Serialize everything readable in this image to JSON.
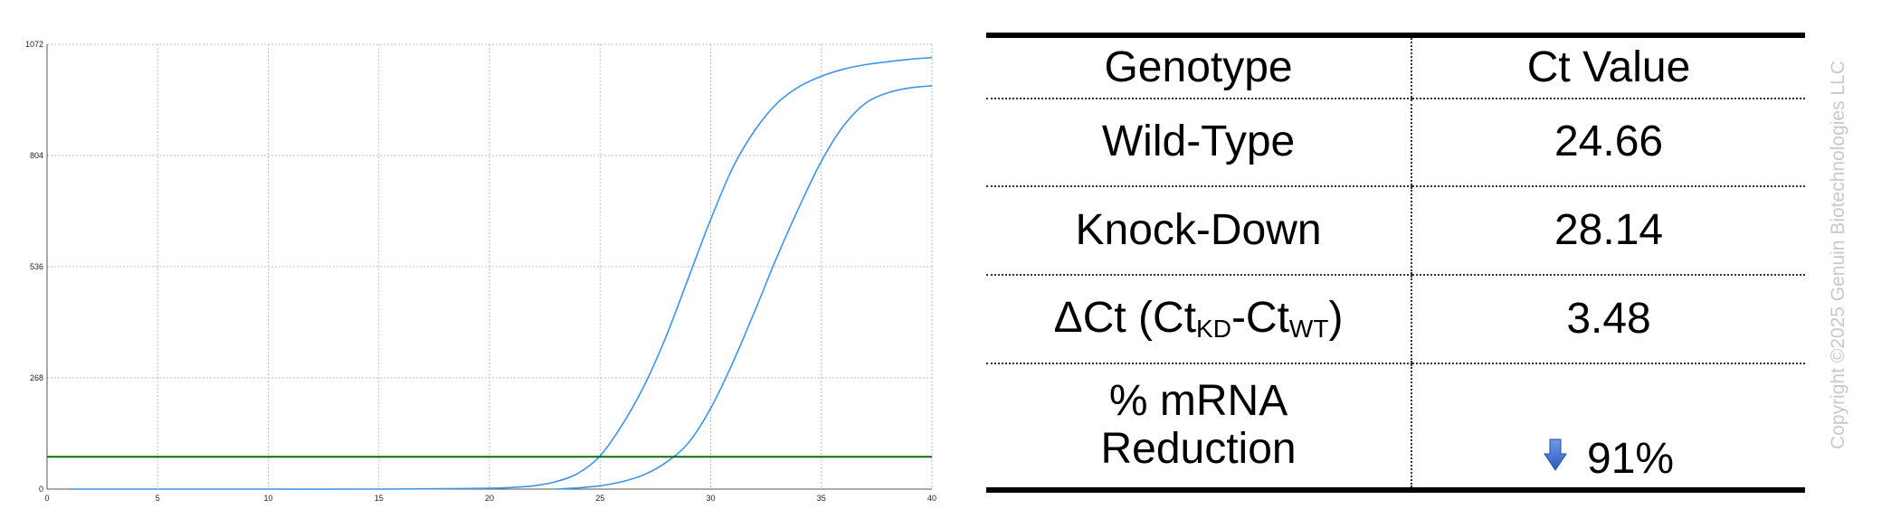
{
  "chart_data": {
    "type": "line",
    "title": "",
    "xlabel": "",
    "ylabel": "",
    "xlim": [
      0,
      40
    ],
    "ylim": [
      0,
      1072
    ],
    "x_ticks": [
      "0",
      "5",
      "10",
      "15",
      "20",
      "25",
      "30",
      "35",
      "40"
    ],
    "y_ticks": [
      "0",
      "268",
      "536",
      "804",
      "1072"
    ],
    "grid": true,
    "threshold": {
      "y": 78,
      "color": "#0a6b0a"
    },
    "series": [
      {
        "color": "#3b95ee",
        "x": [
          1,
          5,
          10,
          15,
          18,
          20,
          21,
          22,
          23,
          24,
          25,
          26,
          27,
          28,
          29,
          30,
          31,
          32,
          33,
          34,
          35,
          36,
          37,
          38,
          39,
          40
        ],
        "y": [
          0,
          0,
          0,
          0,
          1,
          2,
          4,
          8,
          18,
          38,
          80,
          155,
          250,
          370,
          510,
          650,
          775,
          865,
          930,
          970,
          995,
          1012,
          1023,
          1030,
          1036,
          1040
        ]
      },
      {
        "color": "#3b95ee",
        "x": [
          23,
          24,
          25,
          26,
          27,
          28,
          29,
          30,
          31,
          32,
          33,
          34,
          35,
          36,
          37,
          38,
          39,
          40
        ],
        "y": [
          0,
          3,
          8,
          18,
          35,
          65,
          112,
          195,
          305,
          430,
          560,
          680,
          790,
          875,
          930,
          955,
          967,
          972
        ]
      }
    ]
  },
  "table": {
    "header": {
      "genotype": "Genotype",
      "ct": "Ct Value"
    },
    "rows": {
      "wt": {
        "label": "Wild-Type",
        "value": "24.66"
      },
      "kd": {
        "label": "Knock-Down",
        "value": "28.14"
      },
      "dct": {
        "label_prefix": "ΔCt (Ct",
        "sub1": "KD",
        "mid": "-Ct",
        "sub2": "WT",
        "suffix": ")",
        "value": "3.48"
      },
      "reduction": {
        "label_line1": "% mRNA",
        "label_line2": "Reduction",
        "value": "91%",
        "icon": "down-arrow-icon",
        "icon_color": "#3a6fcf"
      }
    }
  },
  "copyright": "Copyright ©2025 Genuin Biotechnologies LLC"
}
